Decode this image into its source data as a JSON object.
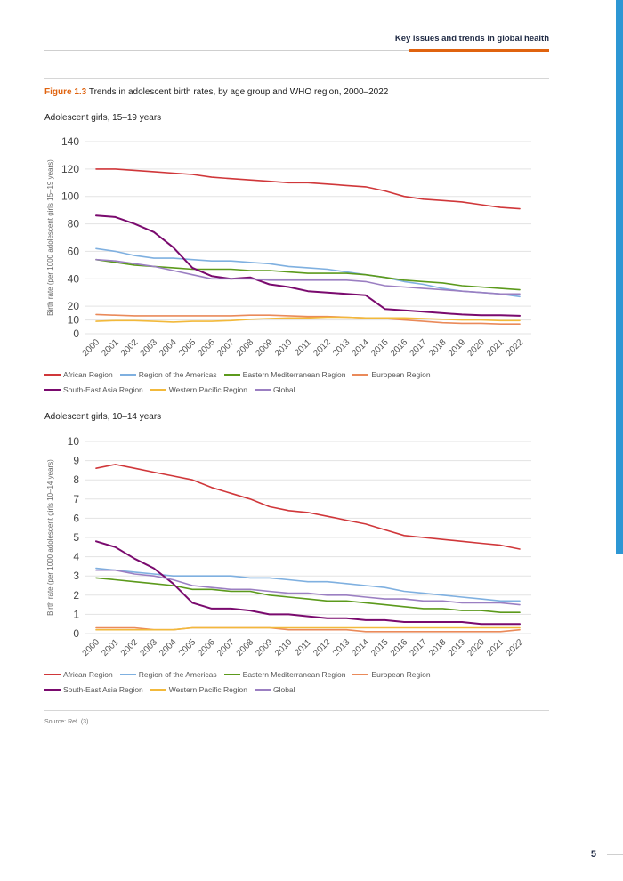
{
  "header": {
    "title": "Key issues and trends in global health"
  },
  "figure": {
    "label": "Figure 1.3",
    "title": "Trends in adolescent birth rates, by age group and WHO region, 2000–2022"
  },
  "colors": {
    "accent": "#e0630f",
    "navy": "#1f2a44",
    "side_bar": "#2d97d4",
    "series": {
      "African Region": "#d0373a",
      "Region of the Americas": "#7fb0e0",
      "Eastern Mediterranean Region": "#5c9a1c",
      "European Region": "#ea8a5a",
      "South-East Asia Region": "#7a0a6e",
      "Western Pacific Region": "#f2b93b",
      "Global": "#9b7fc2"
    }
  },
  "chart_data": [
    {
      "type": "line",
      "subtitle": "Adolescent girls, 15–19 years",
      "ylabel": "Birth rate (per 1000 adolescent girls 15–19 years)",
      "xlabel": "",
      "ylim": [
        0,
        140
      ],
      "yticks": [
        0,
        10,
        20,
        40,
        60,
        80,
        100,
        120,
        140
      ],
      "categories": [
        "2000",
        "2001",
        "2002",
        "2003",
        "2004",
        "2005",
        "2006",
        "2007",
        "2008",
        "2009",
        "2010",
        "2011",
        "2012",
        "2013",
        "2014",
        "2015",
        "2016",
        "2017",
        "2018",
        "2019",
        "2020",
        "2021",
        "2022"
      ],
      "series": [
        {
          "name": "African Region",
          "values": [
            120,
            120,
            119,
            118,
            117,
            116,
            114,
            113,
            112,
            111,
            110,
            110,
            109,
            108,
            107,
            104,
            100,
            98,
            97,
            96,
            94,
            92,
            91
          ]
        },
        {
          "name": "Region of the Americas",
          "values": [
            62,
            60,
            57,
            55,
            55,
            54,
            53,
            53,
            52,
            51,
            49,
            48,
            47,
            45,
            43,
            41,
            38,
            36,
            33,
            31,
            30,
            29,
            27
          ]
        },
        {
          "name": "Eastern Mediterranean Region",
          "values": [
            54,
            52,
            50,
            49,
            48,
            47,
            47,
            47,
            46,
            46,
            45,
            44,
            44,
            44,
            43,
            41,
            39,
            38,
            37,
            35,
            34,
            33,
            32
          ]
        },
        {
          "name": "European Region",
          "values": [
            14,
            13.5,
            13,
            13,
            13,
            13,
            13,
            13,
            13.5,
            13.5,
            13,
            12.5,
            12.5,
            12,
            11.5,
            11,
            10,
            9,
            8,
            7.5,
            7.5,
            7,
            7
          ]
        },
        {
          "name": "South-East Asia Region",
          "values": [
            86,
            85,
            80,
            74,
            63,
            48,
            42,
            40,
            41,
            36,
            34,
            31,
            30,
            29,
            28,
            18,
            17,
            16,
            15,
            14,
            13.5,
            13.5,
            13
          ]
        },
        {
          "name": "Western Pacific Region",
          "values": [
            9,
            9.5,
            9.5,
            9,
            8.5,
            9,
            9,
            9.5,
            10.5,
            11,
            11.5,
            11.5,
            12,
            12,
            11.5,
            11.5,
            11.5,
            11,
            10.5,
            10,
            10,
            9.5,
            9.5
          ]
        },
        {
          "name": "Global",
          "values": [
            54,
            53,
            51,
            49,
            46,
            43,
            40,
            40,
            40,
            39,
            39,
            39,
            39,
            39,
            38,
            35,
            34,
            33,
            32,
            31,
            30,
            29,
            29
          ]
        }
      ]
    },
    {
      "type": "line",
      "subtitle": "Adolescent girls, 10–14 years",
      "ylabel": "Birth rate (per 1000 adolescent girls 10–14 years)",
      "xlabel": "",
      "ylim": [
        0,
        10
      ],
      "yticks": [
        0,
        1,
        2,
        3,
        4,
        5,
        6,
        7,
        8,
        9,
        10
      ],
      "categories": [
        "2000",
        "2001",
        "2002",
        "2003",
        "2004",
        "2005",
        "2006",
        "2007",
        "2008",
        "2009",
        "2010",
        "2011",
        "2012",
        "2013",
        "2014",
        "2015",
        "2016",
        "2017",
        "2018",
        "2019",
        "2020",
        "2021",
        "2022"
      ],
      "series": [
        {
          "name": "African Region",
          "values": [
            8.6,
            8.8,
            8.6,
            8.4,
            8.2,
            8.0,
            7.6,
            7.3,
            7.0,
            6.6,
            6.4,
            6.3,
            6.1,
            5.9,
            5.7,
            5.4,
            5.1,
            5.0,
            4.9,
            4.8,
            4.7,
            4.6,
            4.4
          ]
        },
        {
          "name": "Region of the Americas",
          "values": [
            3.4,
            3.3,
            3.2,
            3.1,
            3.0,
            3.0,
            3.0,
            3.0,
            2.9,
            2.9,
            2.8,
            2.7,
            2.7,
            2.6,
            2.5,
            2.4,
            2.2,
            2.1,
            2.0,
            1.9,
            1.8,
            1.7,
            1.7
          ]
        },
        {
          "name": "Eastern Mediterranean Region",
          "values": [
            2.9,
            2.8,
            2.7,
            2.6,
            2.5,
            2.3,
            2.3,
            2.2,
            2.2,
            2.0,
            1.9,
            1.8,
            1.7,
            1.7,
            1.6,
            1.5,
            1.4,
            1.3,
            1.3,
            1.2,
            1.2,
            1.1,
            1.1
          ]
        },
        {
          "name": "European Region",
          "values": [
            0.3,
            0.3,
            0.3,
            0.2,
            0.2,
            0.3,
            0.3,
            0.3,
            0.3,
            0.3,
            0.2,
            0.2,
            0.2,
            0.2,
            0.1,
            0.1,
            0.1,
            0.1,
            0.1,
            0.1,
            0.1,
            0.1,
            0.2
          ]
        },
        {
          "name": "South-East Asia Region",
          "values": [
            4.8,
            4.5,
            3.9,
            3.4,
            2.6,
            1.6,
            1.3,
            1.3,
            1.2,
            1.0,
            1.0,
            0.9,
            0.8,
            0.8,
            0.7,
            0.7,
            0.6,
            0.6,
            0.6,
            0.6,
            0.5,
            0.5,
            0.5
          ]
        },
        {
          "name": "Western Pacific Region",
          "values": [
            0.2,
            0.2,
            0.2,
            0.2,
            0.2,
            0.3,
            0.3,
            0.3,
            0.3,
            0.3,
            0.3,
            0.3,
            0.3,
            0.3,
            0.3,
            0.3,
            0.3,
            0.3,
            0.3,
            0.3,
            0.3,
            0.3,
            0.3
          ]
        },
        {
          "name": "Global",
          "values": [
            3.3,
            3.3,
            3.1,
            3.0,
            2.8,
            2.5,
            2.4,
            2.3,
            2.3,
            2.2,
            2.1,
            2.1,
            2.0,
            2.0,
            1.9,
            1.8,
            1.8,
            1.7,
            1.7,
            1.6,
            1.6,
            1.6,
            1.5
          ]
        }
      ]
    }
  ],
  "legend": {
    "row1": [
      "African Region",
      "Region of the Americas",
      "Eastern Mediterranean Region",
      "European Region"
    ],
    "row2": [
      "South-East Asia Region",
      "Western Pacific Region",
      "Global"
    ]
  },
  "source": "Source: Ref. (3).",
  "page_number": "5"
}
